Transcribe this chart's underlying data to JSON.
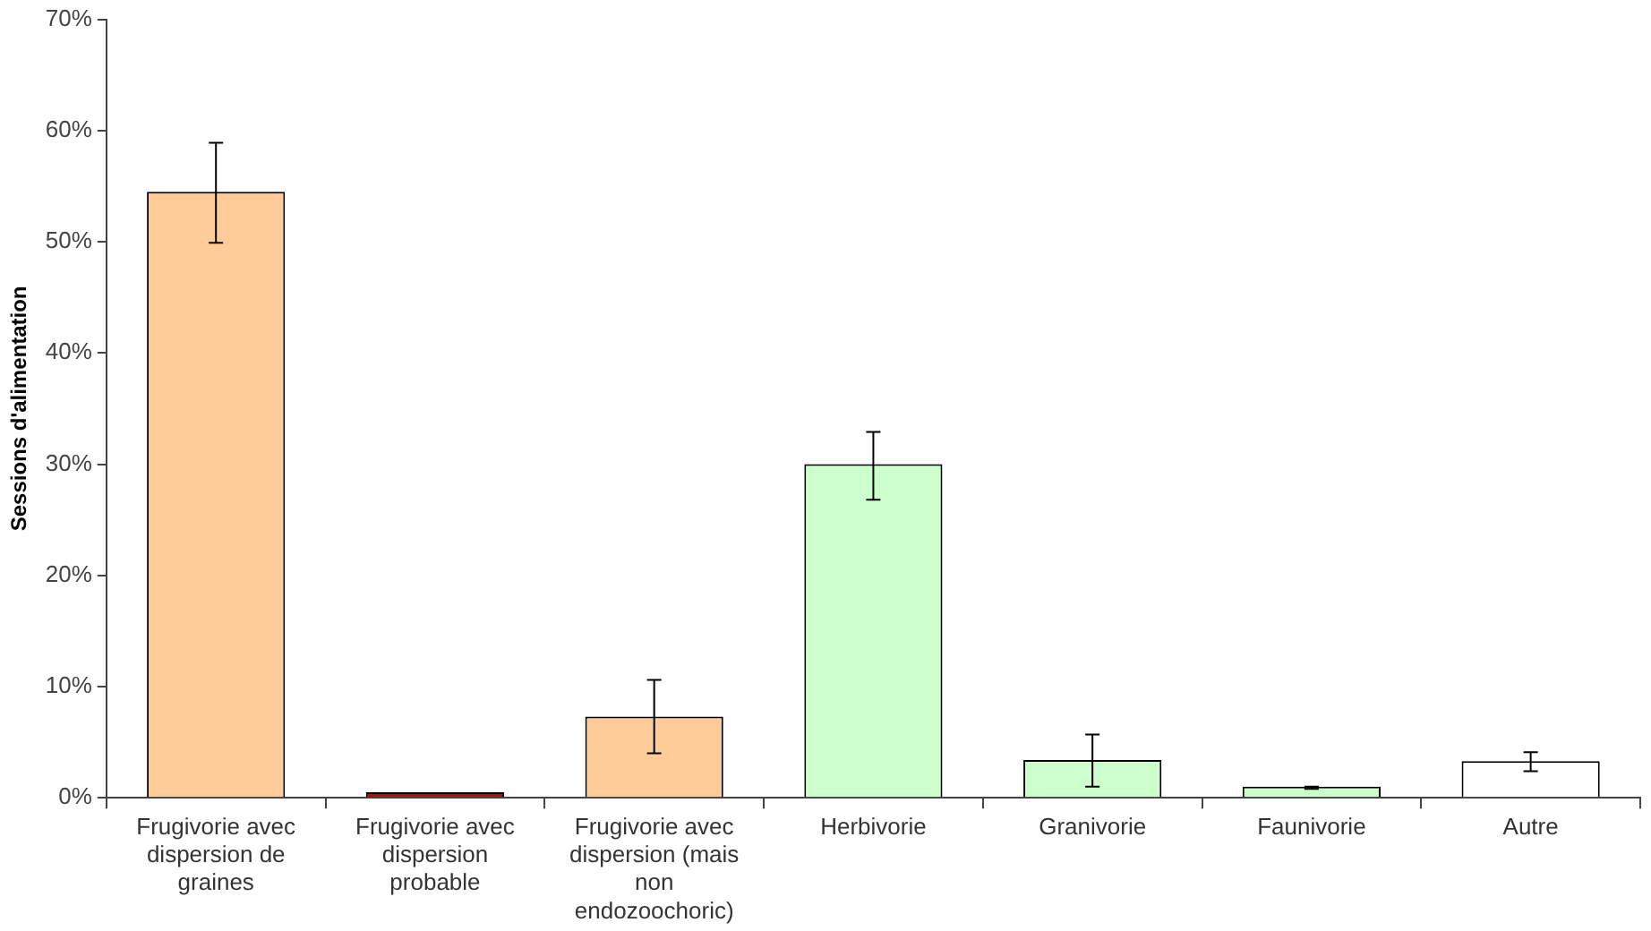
{
  "chart_data": {
    "type": "bar",
    "ylabel": "Sessions d'alimentation",
    "categories": [
      "Frugivorie avec dispersion de graines",
      "Frugivorie avec dispersion probable",
      "Frugivorie avec dispersion (mais non endozoochoric)",
      "Herbivorie",
      "Granivorie",
      "Faunivorie",
      "Autre"
    ],
    "values": [
      54.5,
      0.5,
      7.3,
      30.0,
      3.4,
      1.0,
      3.3
    ],
    "colors": [
      "#ffcc99",
      "#cc0000",
      "#ffcc99",
      "#ccffcc",
      "#ccffcc",
      "#ccffcc",
      "#ffffff"
    ],
    "errors": [
      [
        49.9,
        58.9
      ],
      null,
      [
        4.0,
        10.6
      ],
      [
        26.8,
        32.9
      ],
      [
        1.0,
        5.7
      ],
      [
        0.8,
        1.0
      ],
      [
        2.4,
        4.1
      ]
    ],
    "ylim": [
      0,
      70
    ],
    "yticks": [
      {
        "value": 0,
        "label": "0%"
      },
      {
        "value": 10,
        "label": "10%"
      },
      {
        "value": 20,
        "label": "20%"
      },
      {
        "value": 30,
        "label": "30%"
      },
      {
        "value": 40,
        "label": "40%"
      },
      {
        "value": 50,
        "label": "50%"
      },
      {
        "value": 60,
        "label": "60%"
      },
      {
        "value": 70,
        "label": "70%"
      }
    ],
    "grid": false,
    "legend": false
  }
}
